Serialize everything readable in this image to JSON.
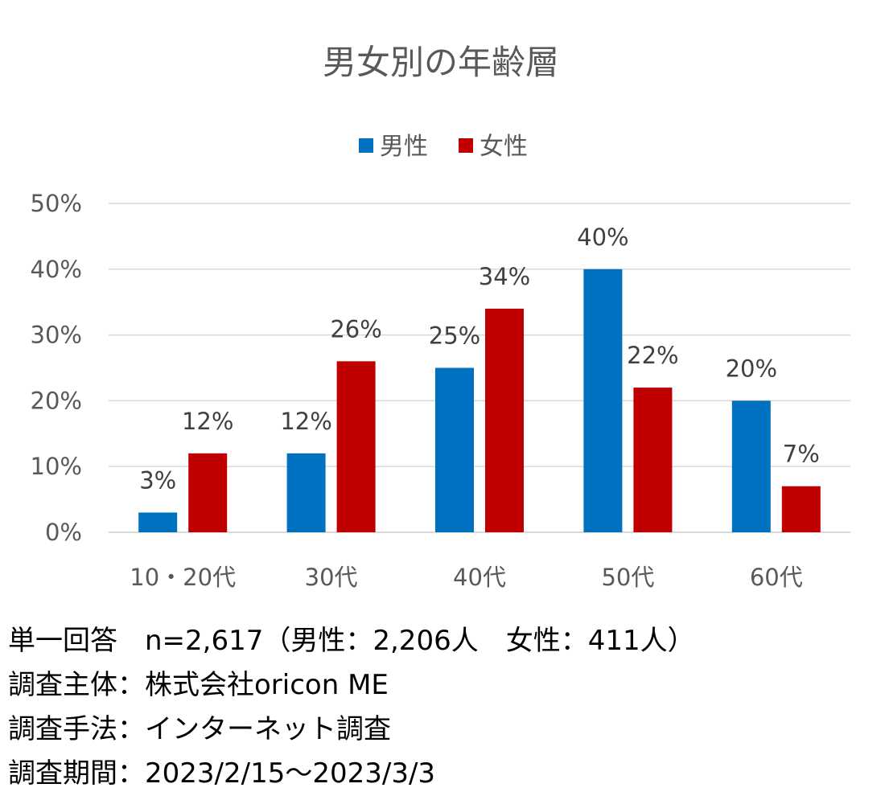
{
  "chart_data": {
    "type": "bar",
    "title": "男女別の年齢層",
    "categories": [
      "10・20代",
      "30代",
      "40代",
      "50代",
      "60代"
    ],
    "series": [
      {
        "name": "男性",
        "color": "#0070c0",
        "values": [
          3,
          12,
          25,
          40,
          20
        ],
        "labels": [
          "3%",
          "12%",
          "25%",
          "40%",
          "20%"
        ]
      },
      {
        "name": "女性",
        "color": "#c00000",
        "values": [
          12,
          26,
          34,
          22,
          7
        ],
        "labels": [
          "12%",
          "26%",
          "34%",
          "22%",
          "7%"
        ]
      }
    ],
    "ylim": [
      0,
      50
    ],
    "yticks": [
      "0%",
      "10%",
      "20%",
      "30%",
      "40%",
      "50%"
    ],
    "legend": "top-center",
    "grid": true
  },
  "notes": [
    "単一回答　n=2,617（男性：2,206人　女性：411人）",
    "調査主体：株式会社oricon ME",
    "調査手法：インターネット調査",
    "調査期間：2023/2/15〜2023/3/3"
  ]
}
